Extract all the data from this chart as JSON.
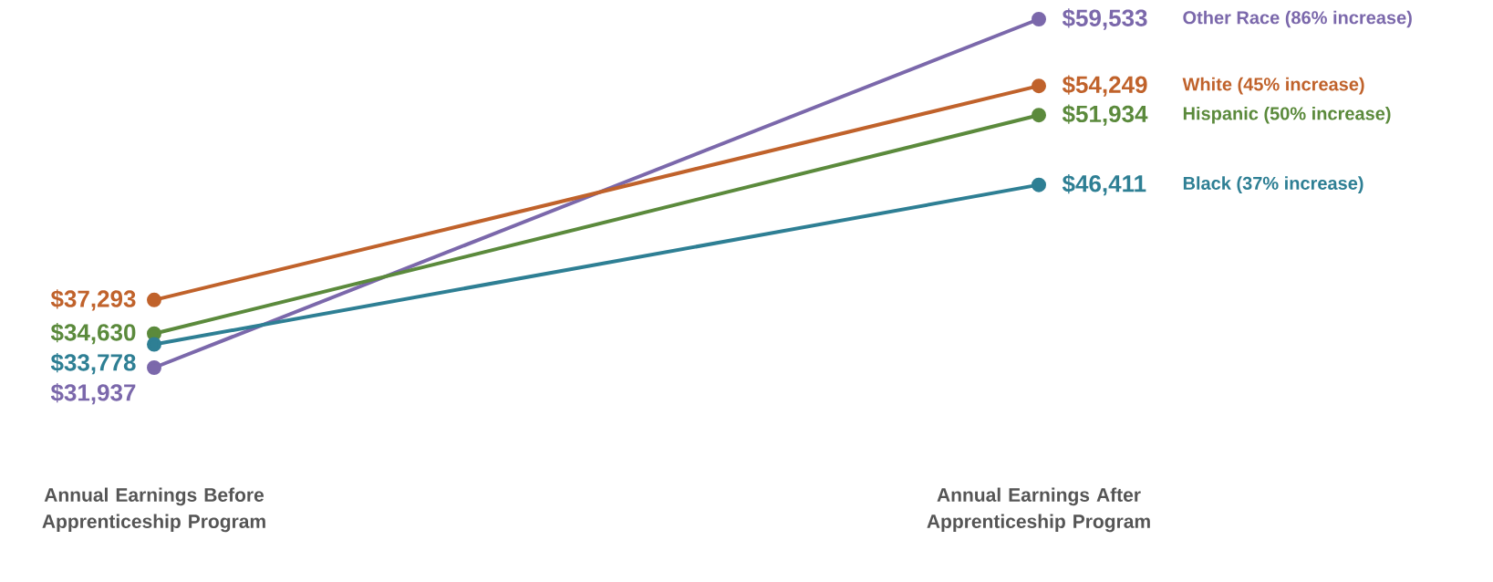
{
  "chart_data": {
    "type": "line",
    "categories": [
      "Annual Earnings Before Apprenticeship Program",
      "Annual Earnings After Apprenticeship Program"
    ],
    "marker": "circle",
    "series": [
      {
        "name": "Other Race (86% increase)",
        "color": "#7b68ab",
        "values": [
          31937,
          59533
        ],
        "value_labels": [
          "$31,937",
          "$59,533"
        ]
      },
      {
        "name": "White (45% increase)",
        "color": "#c0622b",
        "values": [
          37293,
          54249
        ],
        "value_labels": [
          "$37,293",
          "$54,249"
        ]
      },
      {
        "name": "Hispanic (50% increase)",
        "color": "#5b8a3c",
        "values": [
          34630,
          51934
        ],
        "value_labels": [
          "$34,630",
          "$51,934"
        ]
      },
      {
        "name": "Black (37% increase)",
        "color": "#2e7f94",
        "values": [
          33778,
          46411
        ],
        "value_labels": [
          "$33,778",
          "$46,411"
        ]
      }
    ]
  }
}
